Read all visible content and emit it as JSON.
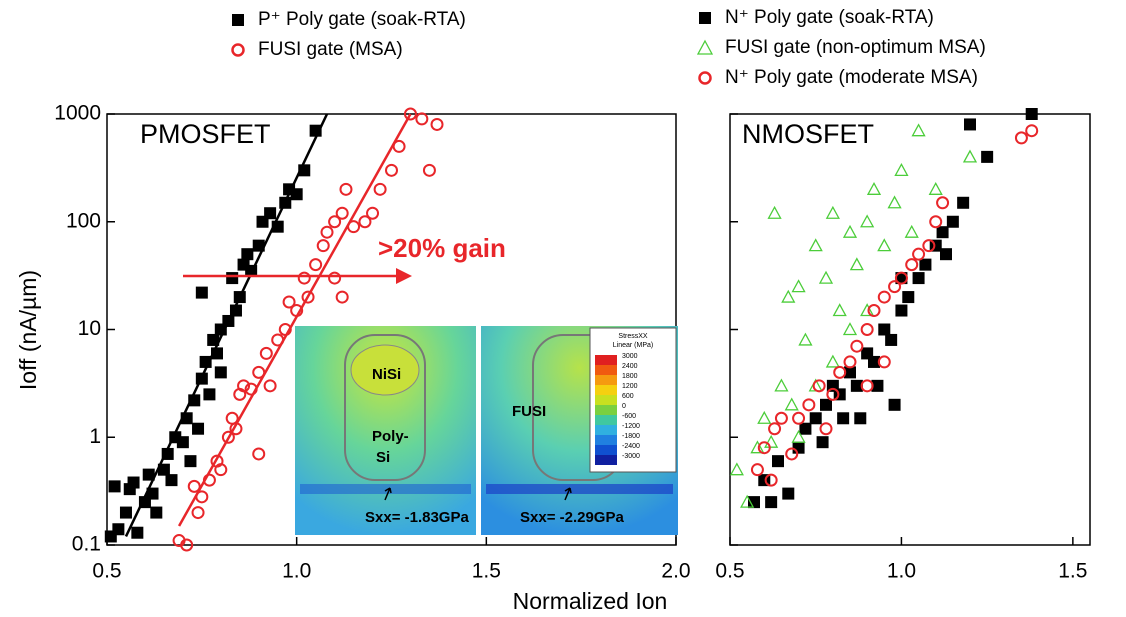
{
  "chart_data": [
    {
      "type": "scatter",
      "annotation_title": "PMOSFET",
      "annotation": ">20% gain",
      "x_label": "Normalized Ion",
      "y_label": "Ioff (nA/µm)",
      "xlim": [
        0.5,
        2.0
      ],
      "ylim": [
        0.1,
        1000
      ],
      "ylog": true,
      "xticks": [
        0.5,
        {
          "value": 1,
          "label": "1.0"
        },
        1.5,
        {
          "value": 2,
          "label": "2.0"
        }
      ],
      "yticks": [
        0.1,
        1,
        10,
        100,
        1000
      ],
      "ytick_labels": true,
      "series": [
        {
          "name": "P⁺ Poly gate (soak-RTA)",
          "color": "#000000",
          "marker": "square",
          "x": [
            0.51,
            0.52,
            0.53,
            0.55,
            0.56,
            0.57,
            0.58,
            0.6,
            0.61,
            0.62,
            0.63,
            0.65,
            0.66,
            0.67,
            0.68,
            0.7,
            0.71,
            0.72,
            0.73,
            0.74,
            0.75,
            0.76,
            0.77,
            0.78,
            0.79,
            0.8,
            0.8,
            0.82,
            0.83,
            0.84,
            0.85,
            0.86,
            0.88,
            0.9,
            0.91,
            0.93,
            0.95,
            0.97,
            0.98,
            1.0,
            1.02,
            1.05,
            0.75,
            0.87
          ],
          "values": [
            0.12,
            0.35,
            0.14,
            0.2,
            0.33,
            0.38,
            0.13,
            0.25,
            0.45,
            0.3,
            0.2,
            0.5,
            0.7,
            0.4,
            1.0,
            0.9,
            1.5,
            0.6,
            2.2,
            1.2,
            3.5,
            5,
            2.5,
            8,
            6,
            10,
            4,
            12,
            30,
            15,
            20,
            40,
            35,
            60,
            100,
            120,
            90,
            150,
            200,
            180,
            300,
            700,
            22,
            50
          ]
        },
        {
          "name": "FUSI gate (MSA)",
          "color": "#e8262a",
          "marker": "circle",
          "x": [
            0.69,
            0.71,
            0.73,
            0.74,
            0.75,
            0.77,
            0.79,
            0.8,
            0.82,
            0.83,
            0.84,
            0.85,
            0.86,
            0.88,
            0.9,
            0.9,
            0.92,
            0.93,
            0.95,
            0.97,
            0.98,
            1.0,
            1.02,
            1.03,
            1.05,
            1.07,
            1.08,
            1.1,
            1.1,
            1.12,
            1.13,
            1.15,
            1.18,
            1.2,
            1.22,
            1.25,
            1.27,
            1.3,
            1.33,
            1.35,
            1.37,
            1.12
          ],
          "values": [
            0.11,
            0.1,
            0.35,
            0.2,
            0.28,
            0.4,
            0.6,
            0.5,
            1.0,
            1.5,
            1.2,
            2.5,
            3,
            2.8,
            0.7,
            4,
            6,
            3,
            8,
            10,
            18,
            15,
            30,
            20,
            40,
            60,
            80,
            30,
            100,
            120,
            200,
            90,
            100,
            120,
            200,
            300,
            500,
            1000,
            900,
            300,
            800,
            20
          ]
        }
      ],
      "lines": [
        {
          "color": "#000000",
          "x": [
            0.55,
            1.08
          ],
          "values": [
            0.12,
            1000
          ]
        },
        {
          "color": "#e8262a",
          "x": [
            0.69,
            1.3
          ],
          "values": [
            0.15,
            1000
          ]
        }
      ]
    },
    {
      "type": "scatter",
      "annotation_title": "NMOSFET",
      "xlim": [
        0.5,
        1.55
      ],
      "ylim": [
        0.1,
        1000
      ],
      "ylog": true,
      "xticks": [
        0.5,
        {
          "value": 1,
          "label": "1.0"
        },
        1.5
      ],
      "yticks": [
        0.1,
        1,
        10,
        100,
        1000
      ],
      "ytick_labels": false,
      "series": [
        {
          "name": "N⁺ Poly gate (soak-RTA)",
          "color": "#000000",
          "marker": "square",
          "x": [
            0.57,
            0.6,
            0.62,
            0.64,
            0.67,
            0.7,
            0.72,
            0.75,
            0.78,
            0.8,
            0.82,
            0.85,
            0.87,
            0.9,
            0.92,
            0.95,
            0.97,
            1.0,
            1.02,
            1.05,
            1.07,
            1.1,
            1.12,
            1.15,
            1.18,
            1.2,
            1.25,
            1.38,
            0.88,
            0.93,
            0.98,
            1.0,
            0.83,
            0.77,
            1.13
          ],
          "values": [
            0.25,
            0.4,
            0.25,
            0.6,
            0.3,
            0.8,
            1.2,
            1.5,
            2,
            3,
            2.5,
            4,
            3,
            6,
            5,
            10,
            8,
            15,
            20,
            30,
            40,
            60,
            80,
            100,
            150,
            800,
            400,
            1000,
            1.5,
            3,
            2,
            30,
            1.5,
            0.9,
            50
          ]
        },
        {
          "name": "FUSI gate (non-optimum MSA)",
          "color": "#4ccd3a",
          "marker": "triangle",
          "x": [
            0.52,
            0.55,
            0.58,
            0.6,
            0.63,
            0.65,
            0.67,
            0.7,
            0.72,
            0.75,
            0.78,
            0.8,
            0.82,
            0.85,
            0.87,
            0.9,
            0.92,
            0.95,
            0.98,
            1.0,
            1.03,
            1.05,
            1.1,
            1.2,
            0.7,
            0.75,
            0.8,
            0.85,
            0.9,
            0.68,
            0.62
          ],
          "values": [
            0.5,
            0.25,
            0.8,
            1.5,
            120,
            3,
            20,
            25,
            8,
            60,
            30,
            120,
            15,
            80,
            40,
            100,
            200,
            60,
            150,
            300,
            80,
            700,
            200,
            400,
            1,
            3,
            5,
            10,
            15,
            2,
            0.9
          ]
        },
        {
          "name": "N⁺ Poly gate (moderate MSA)",
          "color": "#e8262a",
          "marker": "circle",
          "x": [
            0.58,
            0.6,
            0.63,
            0.65,
            0.68,
            0.7,
            0.73,
            0.76,
            0.8,
            0.82,
            0.85,
            0.87,
            0.9,
            0.92,
            0.95,
            0.98,
            1.0,
            1.03,
            1.05,
            1.08,
            1.1,
            1.12,
            1.35,
            1.38,
            0.95,
            0.9,
            0.78,
            0.62
          ],
          "values": [
            0.5,
            0.8,
            1.2,
            1.5,
            0.7,
            1.5,
            2,
            3,
            2.5,
            4,
            5,
            7,
            10,
            15,
            20,
            25,
            30,
            40,
            50,
            60,
            100,
            150,
            600,
            700,
            5,
            3,
            1.2,
            0.4
          ]
        }
      ]
    }
  ],
  "inset": {
    "left_labels": [
      "NiSi",
      "Poly-",
      "Si",
      "Sxx= -1.83GPa"
    ],
    "right_labels": [
      "FUSI",
      "Sxx= -2.29GPa"
    ],
    "colorbar_title": [
      "StressXX",
      "Linear (MPa)"
    ],
    "colorbar_labels": [
      "3000",
      "2400",
      "1800",
      "1200",
      "600",
      "0",
      "-600",
      "-1200",
      "-1800",
      "-2400",
      "-3000"
    ]
  }
}
